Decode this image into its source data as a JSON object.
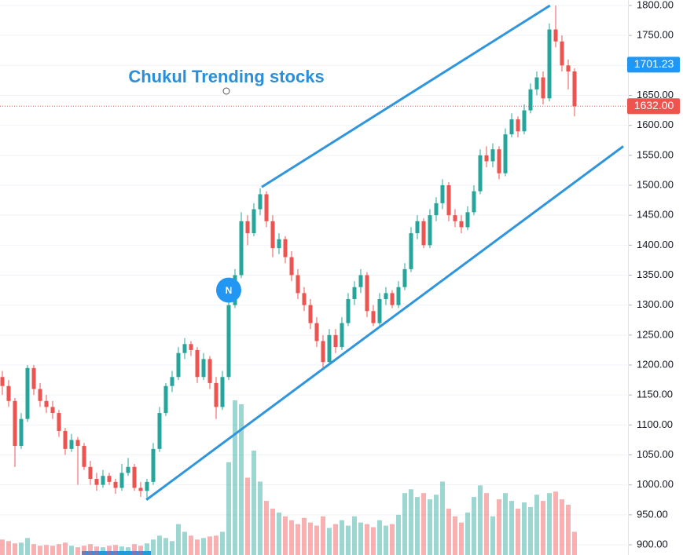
{
  "chart_data": {
    "type": "candlestick",
    "title": "Chukul Trending stocks",
    "ylim": [
      900,
      1800
    ],
    "yticks": [
      {
        "value": 900,
        "label": "900.00"
      },
      {
        "value": 950,
        "label": "950.00"
      },
      {
        "value": 1000,
        "label": "1000.00"
      },
      {
        "value": 1050,
        "label": "1050.00"
      },
      {
        "value": 1100,
        "label": "1100.00"
      },
      {
        "value": 1150,
        "label": "1150.00"
      },
      {
        "value": 1200,
        "label": "1200.00"
      },
      {
        "value": 1250,
        "label": "1250.00"
      },
      {
        "value": 1300,
        "label": "1300.00"
      },
      {
        "value": 1350,
        "label": "1350.00"
      },
      {
        "value": 1400,
        "label": "1400.00"
      },
      {
        "value": 1450,
        "label": "1450.00"
      },
      {
        "value": 1500,
        "label": "1500.00"
      },
      {
        "value": 1550,
        "label": "1550.00"
      },
      {
        "value": 1600,
        "label": "1600.00"
      },
      {
        "value": 1650,
        "label": "1650.00"
      },
      {
        "value": 1700,
        "label": "1700.00"
      },
      {
        "value": 1750,
        "label": "1750.00"
      },
      {
        "value": 1800,
        "label": "1800.00"
      }
    ],
    "grid": true,
    "up_color": "#26a69a",
    "down_color": "#ef5350",
    "ohlc": [
      [
        1180,
        1190,
        1150,
        1165
      ],
      [
        1165,
        1175,
        1130,
        1140
      ],
      [
        1140,
        1145,
        1030,
        1065
      ],
      [
        1065,
        1120,
        1060,
        1110
      ],
      [
        1110,
        1200,
        1105,
        1195
      ],
      [
        1195,
        1200,
        1150,
        1160
      ],
      [
        1160,
        1170,
        1130,
        1140
      ],
      [
        1140,
        1150,
        1120,
        1130
      ],
      [
        1130,
        1140,
        1110,
        1120
      ],
      [
        1120,
        1125,
        1080,
        1090
      ],
      [
        1090,
        1095,
        1050,
        1060
      ],
      [
        1060,
        1085,
        1055,
        1075
      ],
      [
        1075,
        1080,
        1000,
        1065
      ],
      [
        1065,
        1070,
        1025,
        1030
      ],
      [
        1030,
        1040,
        1000,
        1010
      ],
      [
        1010,
        1020,
        990,
        1000
      ],
      [
        1000,
        1025,
        995,
        1015
      ],
      [
        1015,
        1020,
        1000,
        1005
      ],
      [
        1005,
        1010,
        985,
        995
      ],
      [
        995,
        1035,
        990,
        1020
      ],
      [
        1020,
        1045,
        1015,
        1030
      ],
      [
        1030,
        1035,
        990,
        995
      ],
      [
        995,
        1005,
        980,
        990
      ],
      [
        990,
        1010,
        975,
        1005
      ],
      [
        1005,
        1070,
        1000,
        1060
      ],
      [
        1060,
        1130,
        1055,
        1120
      ],
      [
        1120,
        1170,
        1115,
        1165
      ],
      [
        1165,
        1190,
        1155,
        1180
      ],
      [
        1180,
        1230,
        1175,
        1220
      ],
      [
        1220,
        1245,
        1210,
        1235
      ],
      [
        1235,
        1240,
        1215,
        1225
      ],
      [
        1225,
        1230,
        1170,
        1180
      ],
      [
        1180,
        1220,
        1175,
        1210
      ],
      [
        1210,
        1215,
        1160,
        1170
      ],
      [
        1170,
        1180,
        1110,
        1130
      ],
      [
        1130,
        1190,
        1125,
        1180
      ],
      [
        1180,
        1305,
        1175,
        1300
      ],
      [
        1300,
        1360,
        1295,
        1350
      ],
      [
        1350,
        1455,
        1345,
        1440
      ],
      [
        1440,
        1450,
        1400,
        1420
      ],
      [
        1420,
        1470,
        1415,
        1460
      ],
      [
        1460,
        1495,
        1450,
        1485
      ],
      [
        1485,
        1490,
        1430,
        1440
      ],
      [
        1440,
        1450,
        1380,
        1395
      ],
      [
        1395,
        1420,
        1385,
        1410
      ],
      [
        1410,
        1415,
        1370,
        1380
      ],
      [
        1380,
        1390,
        1340,
        1350
      ],
      [
        1350,
        1360,
        1310,
        1320
      ],
      [
        1320,
        1330,
        1290,
        1300
      ],
      [
        1300,
        1310,
        1260,
        1270
      ],
      [
        1270,
        1280,
        1230,
        1240
      ],
      [
        1240,
        1250,
        1195,
        1205
      ],
      [
        1205,
        1260,
        1200,
        1250
      ],
      [
        1250,
        1260,
        1220,
        1230
      ],
      [
        1230,
        1280,
        1225,
        1270
      ],
      [
        1270,
        1320,
        1265,
        1310
      ],
      [
        1310,
        1340,
        1300,
        1330
      ],
      [
        1330,
        1360,
        1320,
        1350
      ],
      [
        1350,
        1355,
        1280,
        1290
      ],
      [
        1290,
        1300,
        1265,
        1270
      ],
      [
        1270,
        1320,
        1265,
        1310
      ],
      [
        1310,
        1330,
        1300,
        1320
      ],
      [
        1320,
        1325,
        1295,
        1300
      ],
      [
        1300,
        1340,
        1295,
        1330
      ],
      [
        1330,
        1370,
        1325,
        1360
      ],
      [
        1360,
        1430,
        1355,
        1420
      ],
      [
        1420,
        1450,
        1410,
        1440
      ],
      [
        1440,
        1445,
        1395,
        1400
      ],
      [
        1400,
        1460,
        1395,
        1450
      ],
      [
        1450,
        1480,
        1440,
        1470
      ],
      [
        1470,
        1510,
        1460,
        1500
      ],
      [
        1500,
        1505,
        1440,
        1450
      ],
      [
        1450,
        1460,
        1430,
        1440
      ],
      [
        1440,
        1450,
        1420,
        1430
      ],
      [
        1430,
        1465,
        1425,
        1455
      ],
      [
        1455,
        1500,
        1450,
        1490
      ],
      [
        1490,
        1560,
        1485,
        1550
      ],
      [
        1550,
        1565,
        1530,
        1540
      ],
      [
        1540,
        1570,
        1530,
        1560
      ],
      [
        1560,
        1565,
        1510,
        1520
      ],
      [
        1520,
        1595,
        1515,
        1585
      ],
      [
        1585,
        1620,
        1580,
        1610
      ],
      [
        1610,
        1615,
        1580,
        1590
      ],
      [
        1590,
        1635,
        1585,
        1625
      ],
      [
        1625,
        1670,
        1620,
        1660
      ],
      [
        1660,
        1690,
        1650,
        1680
      ],
      [
        1680,
        1690,
        1635,
        1645
      ],
      [
        1645,
        1770,
        1640,
        1760
      ],
      [
        1760,
        1800,
        1730,
        1740
      ],
      [
        1740,
        1750,
        1690,
        1700
      ],
      [
        1700,
        1710,
        1660,
        1690
      ],
      [
        1690,
        1695,
        1615,
        1632
      ]
    ],
    "volume": [
      20,
      18,
      15,
      16,
      22,
      14,
      12,
      13,
      12,
      14,
      16,
      12,
      10,
      12,
      14,
      11,
      10,
      12,
      13,
      11,
      10,
      14,
      12,
      15,
      20,
      25,
      22,
      18,
      40,
      30,
      25,
      20,
      22,
      24,
      25,
      30,
      120,
      200,
      195,
      100,
      135,
      95,
      70,
      60,
      55,
      50,
      45,
      40,
      48,
      42,
      38,
      50,
      35,
      40,
      45,
      38,
      50,
      42,
      40,
      36,
      45,
      38,
      40,
      52,
      80,
      85,
      75,
      80,
      72,
      78,
      95,
      60,
      50,
      42,
      55,
      75,
      90,
      80,
      50,
      72,
      80,
      70,
      60,
      68,
      62,
      78,
      70,
      80,
      82,
      72,
      65,
      30
    ],
    "trendlines": [
      {
        "color": "#2f95dc",
        "start": [
          41.25,
          1497
        ],
        "end": [
          87.1,
          1800
        ]
      },
      {
        "color": "#2f95dc",
        "start": [
          22.9,
          975
        ],
        "end": [
          98.75,
          1565
        ]
      }
    ],
    "price_labels": [
      {
        "value": 1701.23,
        "label": "1701.23",
        "color": "#2196f3"
      },
      {
        "value": 1632,
        "label": "1632.00",
        "color": "#ef5350"
      }
    ],
    "marker": {
      "label": "N",
      "index": 36,
      "value": 1325,
      "color": "#2196f3"
    }
  }
}
